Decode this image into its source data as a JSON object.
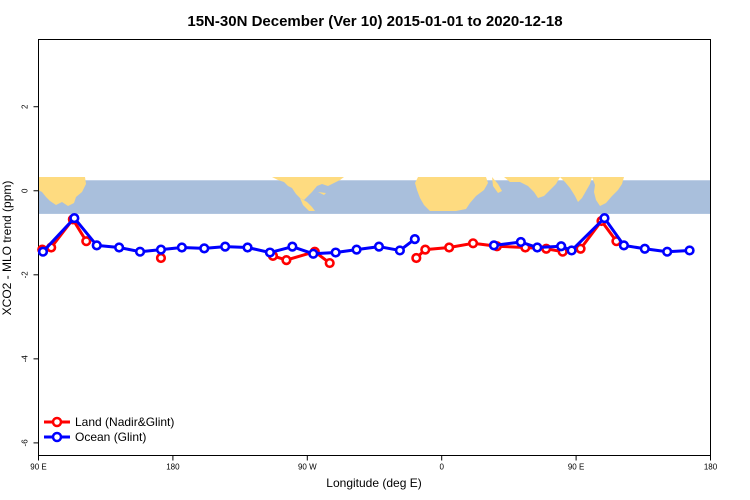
{
  "chart_data": {
    "type": "line",
    "title": "15N-30N December (Ver 10)   2015-01-01 to 2020-12-18",
    "xlabel": "Longitude (deg E)",
    "ylabel": "XCO2 - MLO trend (ppm)",
    "xlim": [
      90,
      540
    ],
    "ylim": [
      -6.3,
      3.6
    ],
    "x_ticks": [
      {
        "value": 90,
        "label": "90 E"
      },
      {
        "value": 180,
        "label": "180"
      },
      {
        "value": 270,
        "label": "90 W"
      },
      {
        "value": 360,
        "label": "0"
      },
      {
        "value": 450,
        "label": "90 E"
      },
      {
        "value": 540,
        "label": "180"
      }
    ],
    "y_ticks": [
      {
        "value": 2,
        "label": "2"
      },
      {
        "value": 0,
        "label": "0"
      },
      {
        "value": -2,
        "label": "-2"
      },
      {
        "value": -4,
        "label": "-4"
      },
      {
        "value": -6,
        "label": "-6"
      }
    ],
    "map_band": {
      "y_top": 0.25,
      "y_bottom": -0.55,
      "ocean_color": "#a9bfdc",
      "land_color": "#fedb80"
    },
    "series": [
      {
        "name": "Land (Nadir&Glint)",
        "color": "#ff0000",
        "points": [
          [
            92.5,
            -1.4
          ],
          [
            98.5,
            -1.35
          ],
          [
            113,
            -0.68
          ],
          [
            122,
            -1.2
          ],
          [
            172,
            -1.6
          ],
          [
            247,
            -1.55
          ],
          [
            256,
            -1.65
          ],
          [
            275,
            -1.45
          ],
          [
            285,
            -1.72
          ],
          [
            343,
            -1.6
          ],
          [
            349,
            -1.4
          ],
          [
            365,
            -1.35
          ],
          [
            381,
            -1.25
          ],
          [
            397,
            -1.32
          ],
          [
            416,
            -1.35
          ],
          [
            430,
            -1.38
          ],
          [
            441,
            -1.45
          ],
          [
            453,
            -1.38
          ],
          [
            467,
            -0.72
          ],
          [
            477,
            -1.2
          ]
        ],
        "breaks_after": [
          3,
          4,
          8
        ]
      },
      {
        "name": "Ocean (Glint)",
        "color": "#0000ff",
        "points": [
          [
            93,
            -1.45
          ],
          [
            114,
            -0.65
          ],
          [
            129,
            -1.3
          ],
          [
            144,
            -1.35
          ],
          [
            158,
            -1.45
          ],
          [
            172,
            -1.4
          ],
          [
            186,
            -1.35
          ],
          [
            201,
            -1.37
          ],
          [
            215,
            -1.33
          ],
          [
            230,
            -1.35
          ],
          [
            245,
            -1.47
          ],
          [
            260,
            -1.33
          ],
          [
            274,
            -1.5
          ],
          [
            289,
            -1.47
          ],
          [
            303,
            -1.4
          ],
          [
            318,
            -1.33
          ],
          [
            332,
            -1.42
          ],
          [
            342,
            -1.15
          ],
          [
            395,
            -1.3
          ],
          [
            413,
            -1.22
          ],
          [
            424,
            -1.35
          ],
          [
            440,
            -1.32
          ],
          [
            447,
            -1.42
          ],
          [
            469,
            -0.65
          ],
          [
            482,
            -1.3
          ],
          [
            496,
            -1.38
          ],
          [
            511,
            -1.45
          ],
          [
            526,
            -1.42
          ]
        ],
        "breaks_after": [
          17
        ]
      }
    ],
    "legend_position": "bottom-left"
  }
}
